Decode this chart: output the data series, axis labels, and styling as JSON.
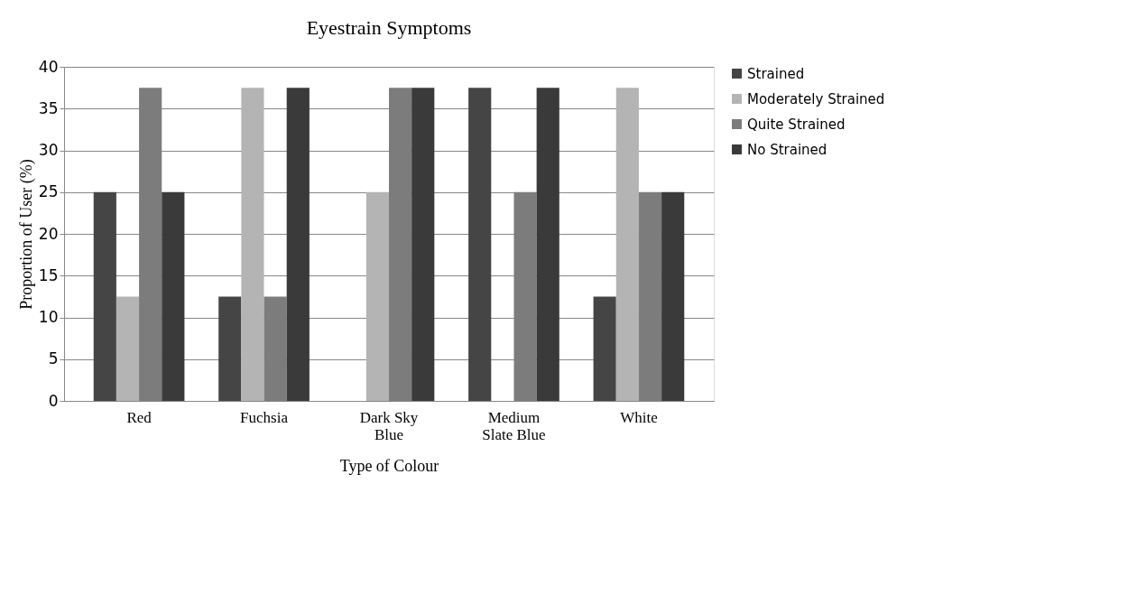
{
  "chart_data": {
    "type": "bar",
    "title": "Eyestrain Symptoms",
    "xlabel": "Type of Colour",
    "ylabel": "Proportion of User (%)",
    "categories": [
      "Red",
      "Fuchsia",
      "Dark Sky Blue",
      "Medium Slate Blue",
      "White"
    ],
    "series": [
      {
        "name": "Strained",
        "color": "#454545",
        "values": [
          25,
          12.5,
          0,
          37.5,
          12.5
        ]
      },
      {
        "name": "Moderately Strained",
        "color": "#b4b4b4",
        "values": [
          12.5,
          37.5,
          25,
          0,
          37.5
        ]
      },
      {
        "name": "Quite Strained",
        "color": "#7c7c7c",
        "values": [
          37.5,
          12.5,
          37.5,
          25,
          25
        ]
      },
      {
        "name": "No Strained",
        "color": "#3a3a3a",
        "values": [
          25,
          37.5,
          37.5,
          37.5,
          25
        ]
      }
    ],
    "ylim": [
      0,
      40
    ],
    "yticks": [
      0,
      5,
      10,
      15,
      20,
      25,
      30,
      35,
      40
    ],
    "grid": "y",
    "legend": "right"
  }
}
